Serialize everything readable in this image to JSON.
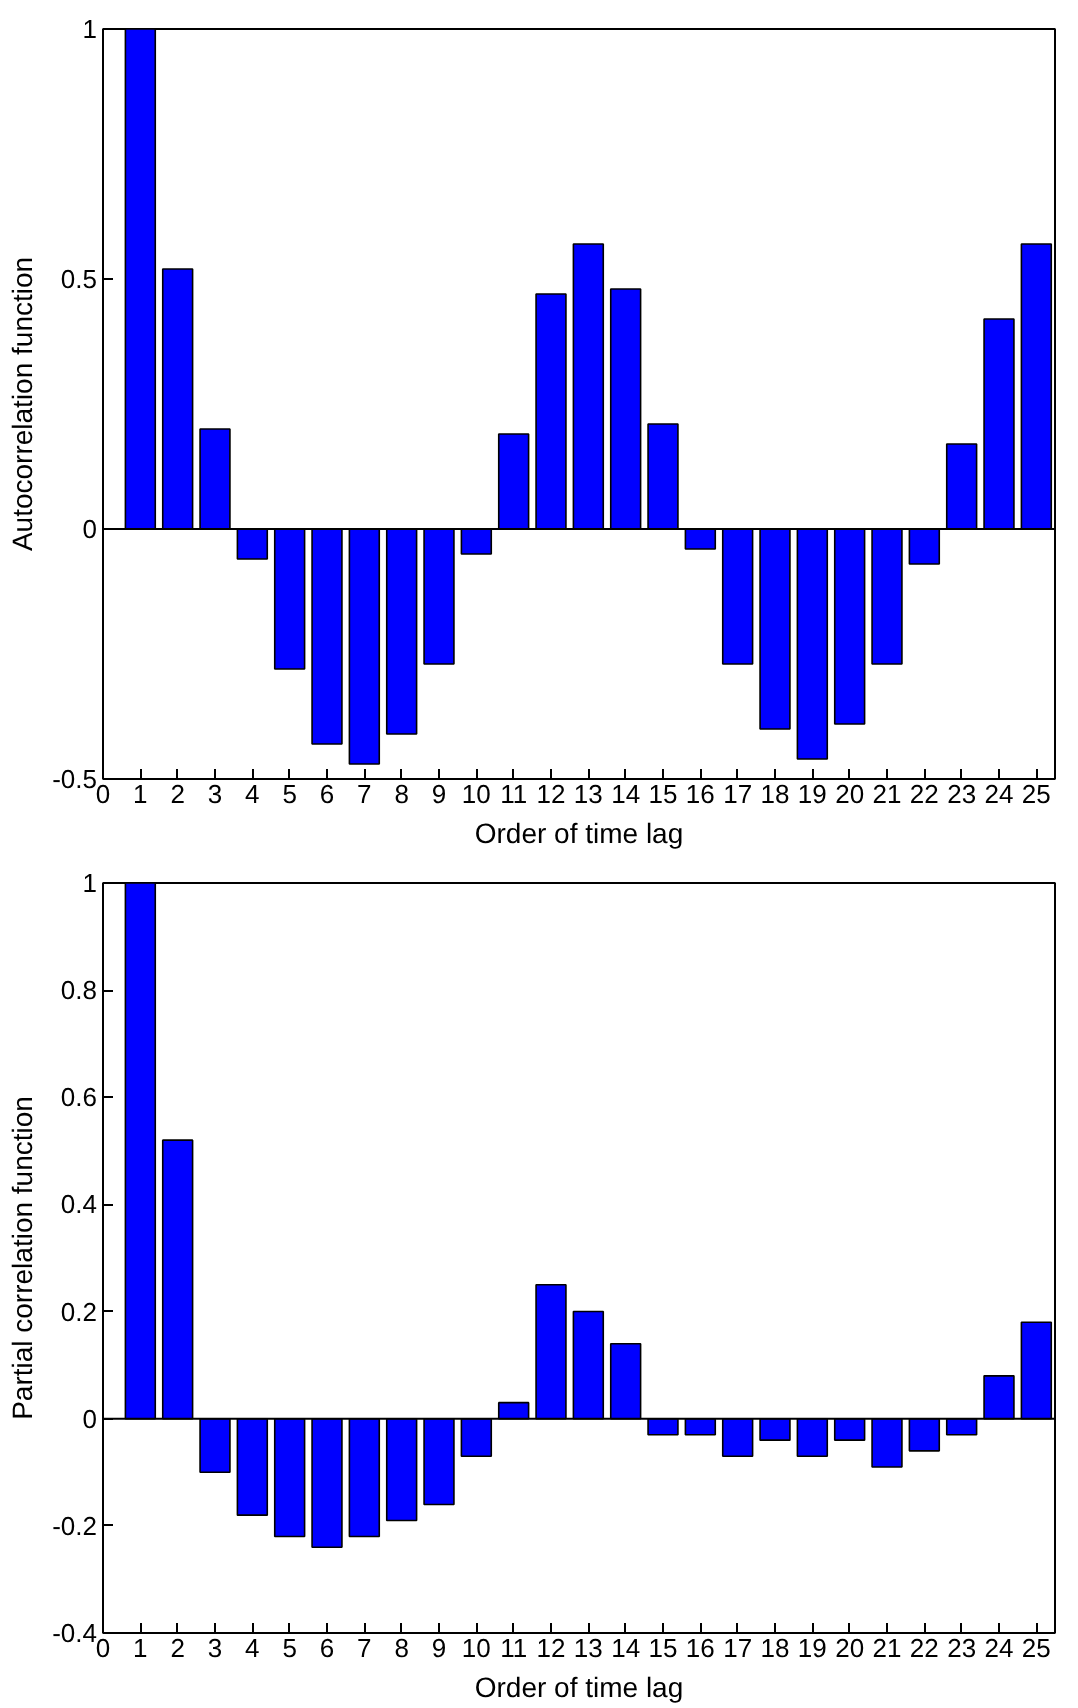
{
  "chart_data": [
    {
      "type": "bar",
      "xlabel": "Order of time lag",
      "ylabel": "Autocorrelation function",
      "x": [
        1,
        2,
        3,
        4,
        5,
        6,
        7,
        8,
        9,
        10,
        11,
        12,
        13,
        14,
        15,
        16,
        17,
        18,
        19,
        20,
        21,
        22,
        23,
        24,
        25
      ],
      "values": [
        1.0,
        0.52,
        0.2,
        -0.06,
        -0.28,
        -0.43,
        -0.47,
        -0.41,
        -0.27,
        -0.05,
        0.19,
        0.47,
        0.57,
        0.48,
        0.21,
        -0.04,
        -0.27,
        -0.4,
        -0.46,
        -0.39,
        -0.27,
        -0.07,
        0.17,
        0.42,
        0.57
      ],
      "color": "#0000ff",
      "xlim": [
        0,
        25.5
      ],
      "xticks": [
        0,
        1,
        2,
        3,
        4,
        5,
        6,
        7,
        8,
        9,
        10,
        11,
        12,
        13,
        14,
        15,
        16,
        17,
        18,
        19,
        20,
        21,
        22,
        23,
        24,
        25
      ],
      "ylim": [
        -0.5,
        1
      ],
      "yticks": [
        -0.5,
        0,
        0.5,
        1
      ],
      "ref_lines": [
        {
          "axis": "y",
          "value": 0,
          "color": "#000000"
        }
      ]
    },
    {
      "type": "bar",
      "xlabel": "Order of time lag",
      "ylabel": "Partial correlation function",
      "x": [
        1,
        2,
        3,
        4,
        5,
        6,
        7,
        8,
        9,
        10,
        11,
        12,
        13,
        14,
        15,
        16,
        17,
        18,
        19,
        20,
        21,
        22,
        23,
        24,
        25
      ],
      "values": [
        1.0,
        0.52,
        -0.1,
        -0.18,
        -0.22,
        -0.24,
        -0.22,
        -0.19,
        -0.16,
        -0.07,
        0.03,
        0.25,
        0.2,
        0.14,
        -0.03,
        -0.03,
        -0.07,
        -0.04,
        -0.07,
        -0.04,
        -0.09,
        -0.06,
        -0.03,
        0.08,
        0.18
      ],
      "color": "#0000ff",
      "xlim": [
        0,
        25.5
      ],
      "xticks": [
        0,
        1,
        2,
        3,
        4,
        5,
        6,
        7,
        8,
        9,
        10,
        11,
        12,
        13,
        14,
        15,
        16,
        17,
        18,
        19,
        20,
        21,
        22,
        23,
        24,
        25
      ],
      "ylim": [
        -0.4,
        1
      ],
      "yticks": [
        -0.4,
        -0.2,
        0,
        0.2,
        0.4,
        0.6,
        0.8,
        1
      ],
      "ref_lines": [
        {
          "axis": "y",
          "value": 0,
          "color": "#000000"
        }
      ]
    }
  ]
}
